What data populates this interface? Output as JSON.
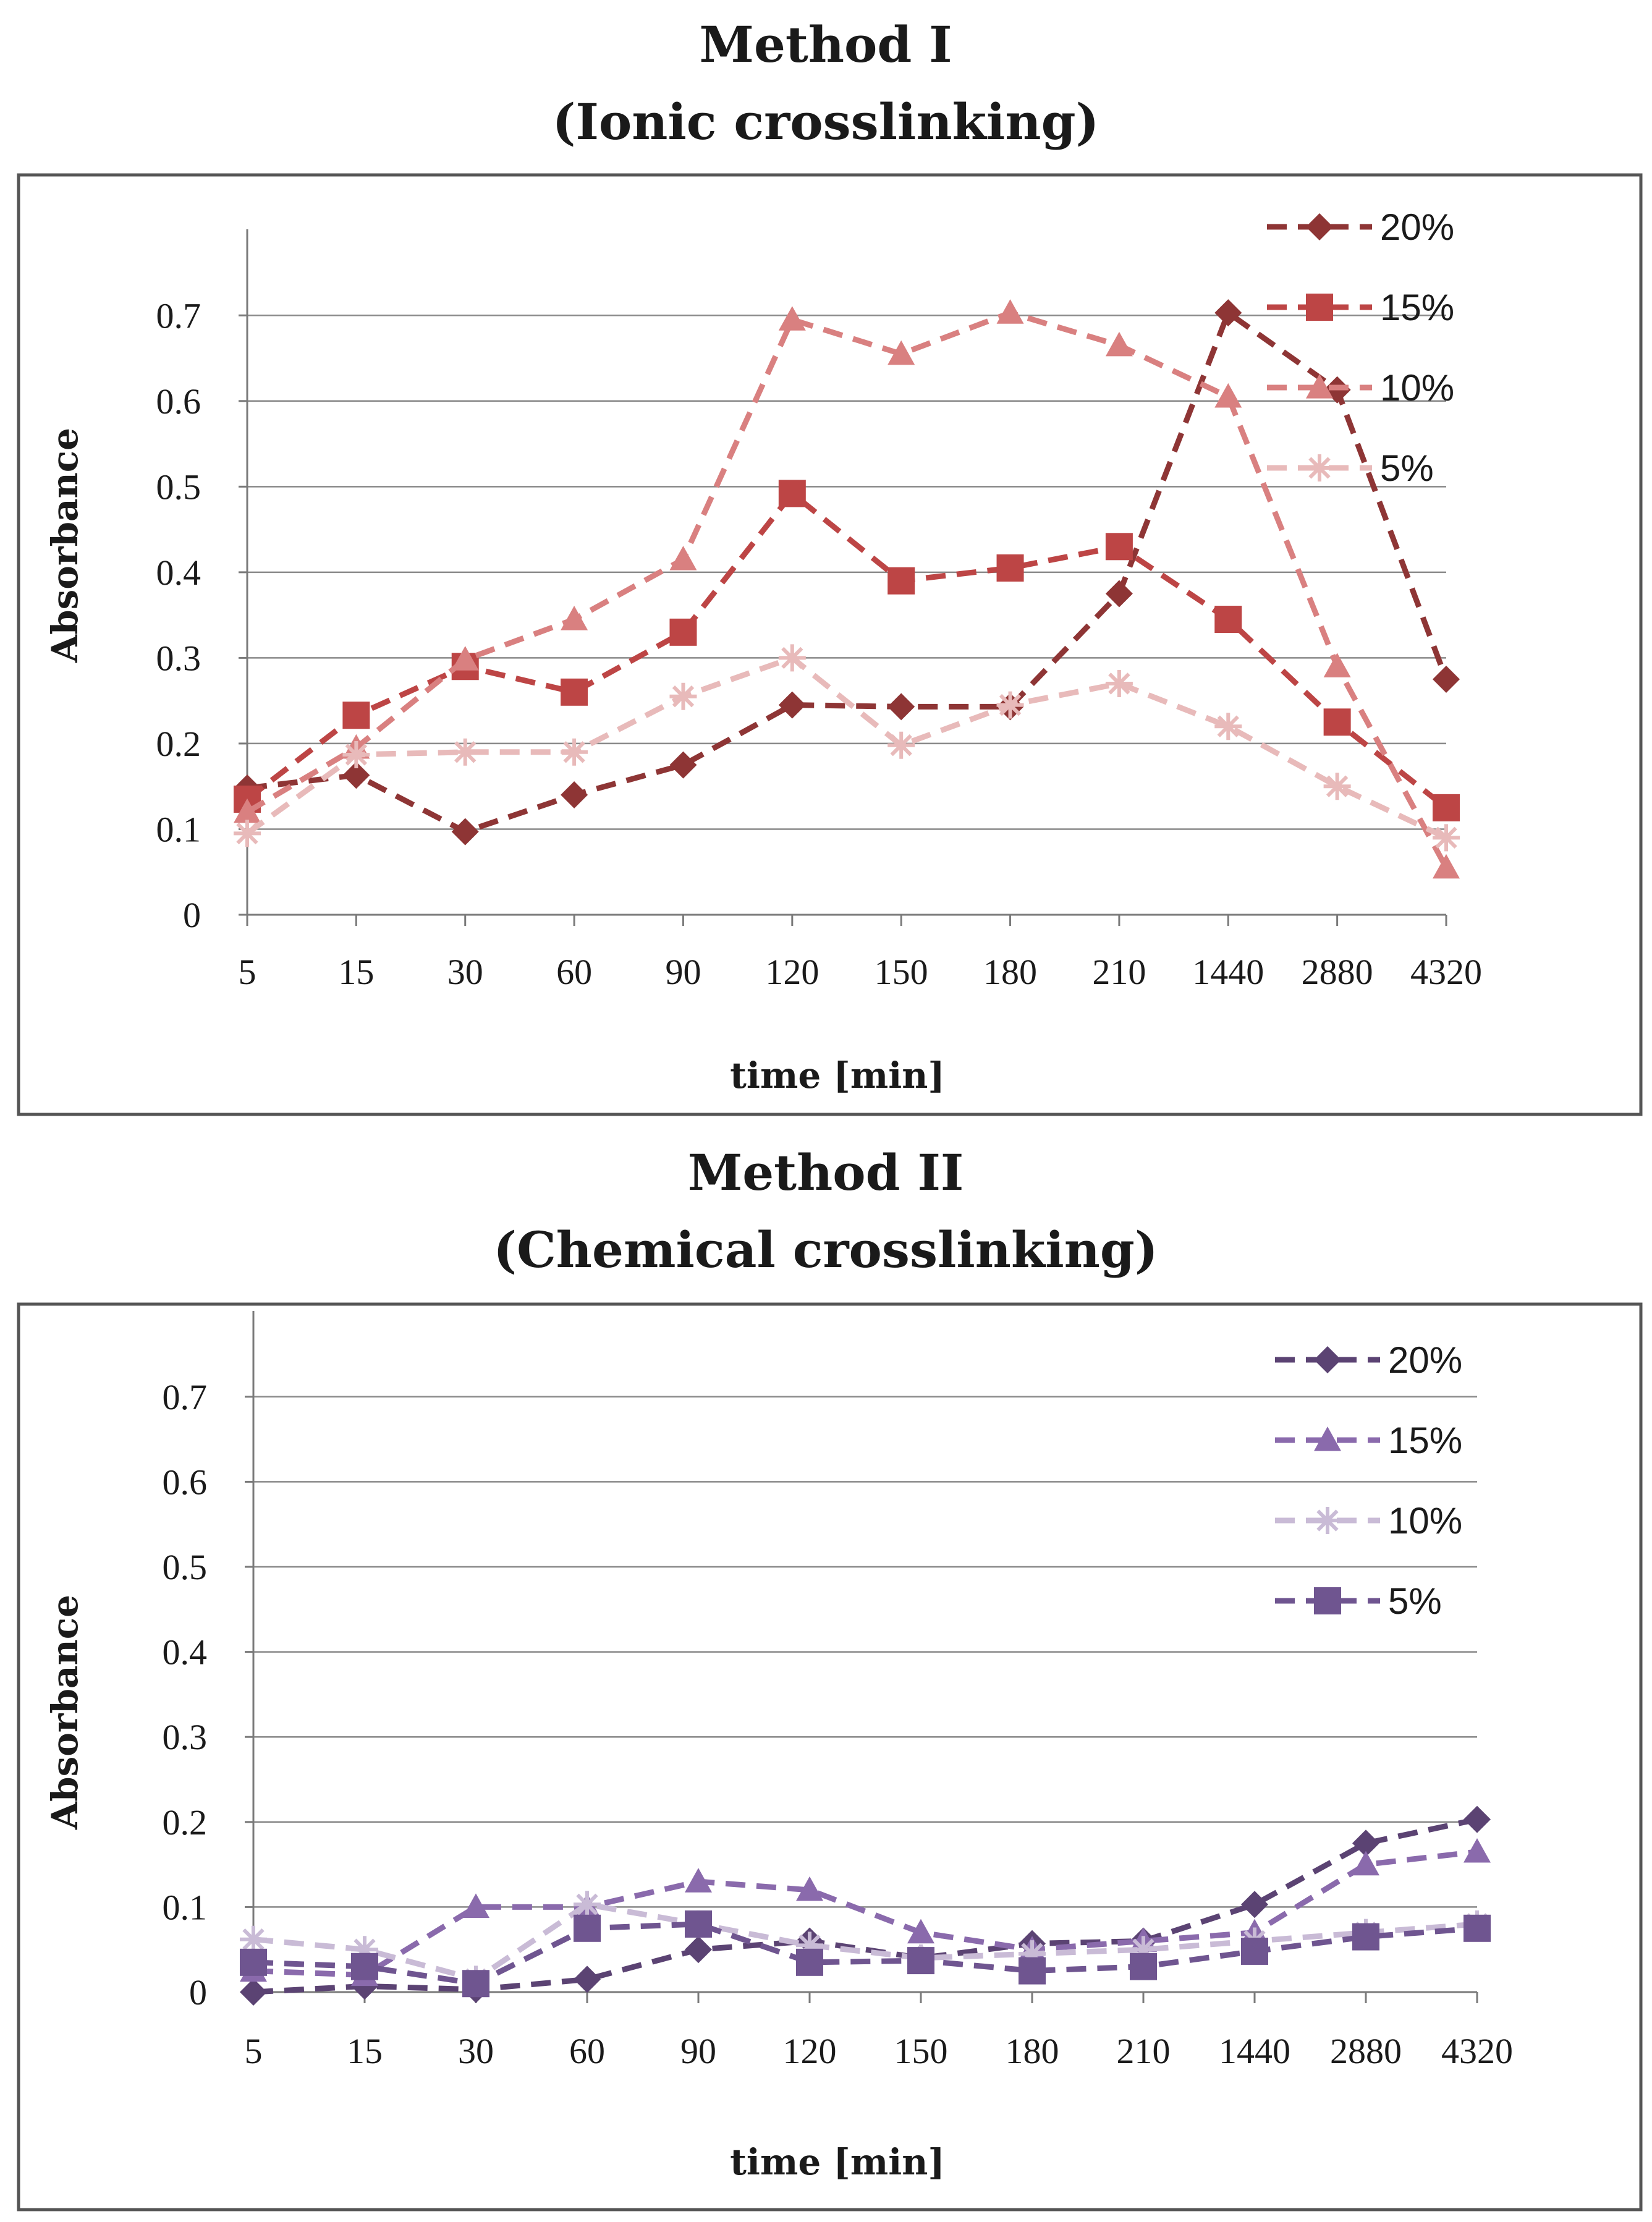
{
  "chart_data": [
    {
      "type": "line",
      "title": "Method I",
      "subtitle": "(Ionic crosslinking)",
      "xlabel": "time [min]",
      "ylabel": "Absorbance",
      "categories": [
        "5",
        "15",
        "30",
        "60",
        "90",
        "120",
        "150",
        "180",
        "210",
        "1440",
        "2880",
        "4320"
      ],
      "ylim": [
        0,
        0.75
      ],
      "yticks": [
        "0",
        "0.1",
        "0.2",
        "0.3",
        "0.4",
        "0.5",
        "0.6",
        "0.7"
      ],
      "grid": true,
      "legend": "top-right",
      "series": [
        {
          "name": "20%",
          "marker": "diamond",
          "color": "#8e3535",
          "values": [
            0.148,
            0.163,
            0.097,
            0.14,
            0.175,
            0.245,
            0.243,
            0.243,
            0.375,
            0.703,
            0.613,
            0.275
          ]
        },
        {
          "name": "15%",
          "marker": "square",
          "color": "#bd4545",
          "values": [
            0.135,
            0.233,
            0.29,
            0.26,
            0.33,
            0.492,
            0.39,
            0.405,
            0.43,
            0.345,
            0.225,
            0.125
          ]
        },
        {
          "name": "10%",
          "marker": "triangle",
          "color": "#d98080",
          "values": [
            0.12,
            0.195,
            0.298,
            0.345,
            0.415,
            0.695,
            0.655,
            0.703,
            0.665,
            0.605,
            0.29,
            0.055
          ]
        },
        {
          "name": "5%",
          "marker": "star",
          "color": "#e8baba",
          "values": [
            0.095,
            0.187,
            0.19,
            0.19,
            0.255,
            0.3,
            0.198,
            0.245,
            0.27,
            0.22,
            0.15,
            0.09
          ]
        }
      ]
    },
    {
      "type": "line",
      "title": "Method II",
      "subtitle": "(Chemical crosslinking)",
      "xlabel": "time [min]",
      "ylabel": "Absorbance",
      "categories": [
        "5",
        "15",
        "30",
        "60",
        "90",
        "120",
        "150",
        "180",
        "210",
        "1440",
        "2880",
        "4320"
      ],
      "ylim": [
        0,
        0.75
      ],
      "yticks": [
        "0",
        "0.1",
        "0.2",
        "0.3",
        "0.4",
        "0.5",
        "0.6",
        "0.7"
      ],
      "grid": true,
      "legend": "top-right",
      "series": [
        {
          "name": "20%",
          "marker": "diamond",
          "color": "#5b4373",
          "values": [
            0.0,
            0.007,
            0.003,
            0.015,
            0.05,
            0.06,
            0.04,
            0.057,
            0.06,
            0.103,
            0.175,
            0.203
          ]
        },
        {
          "name": "15%",
          "marker": "triangle",
          "color": "#8a6aac",
          "values": [
            0.025,
            0.02,
            0.1,
            0.1,
            0.13,
            0.12,
            0.07,
            0.05,
            0.06,
            0.07,
            0.15,
            0.165
          ]
        },
        {
          "name": "10%",
          "marker": "star",
          "color": "#c9bbd6",
          "values": [
            0.062,
            0.05,
            0.015,
            0.103,
            0.08,
            0.055,
            0.04,
            0.045,
            0.05,
            0.06,
            0.07,
            0.08
          ]
        },
        {
          "name": "5%",
          "marker": "square",
          "color": "#6f5590",
          "values": [
            0.035,
            0.03,
            0.01,
            0.075,
            0.08,
            0.035,
            0.037,
            0.025,
            0.03,
            0.048,
            0.065,
            0.075
          ]
        }
      ]
    }
  ]
}
